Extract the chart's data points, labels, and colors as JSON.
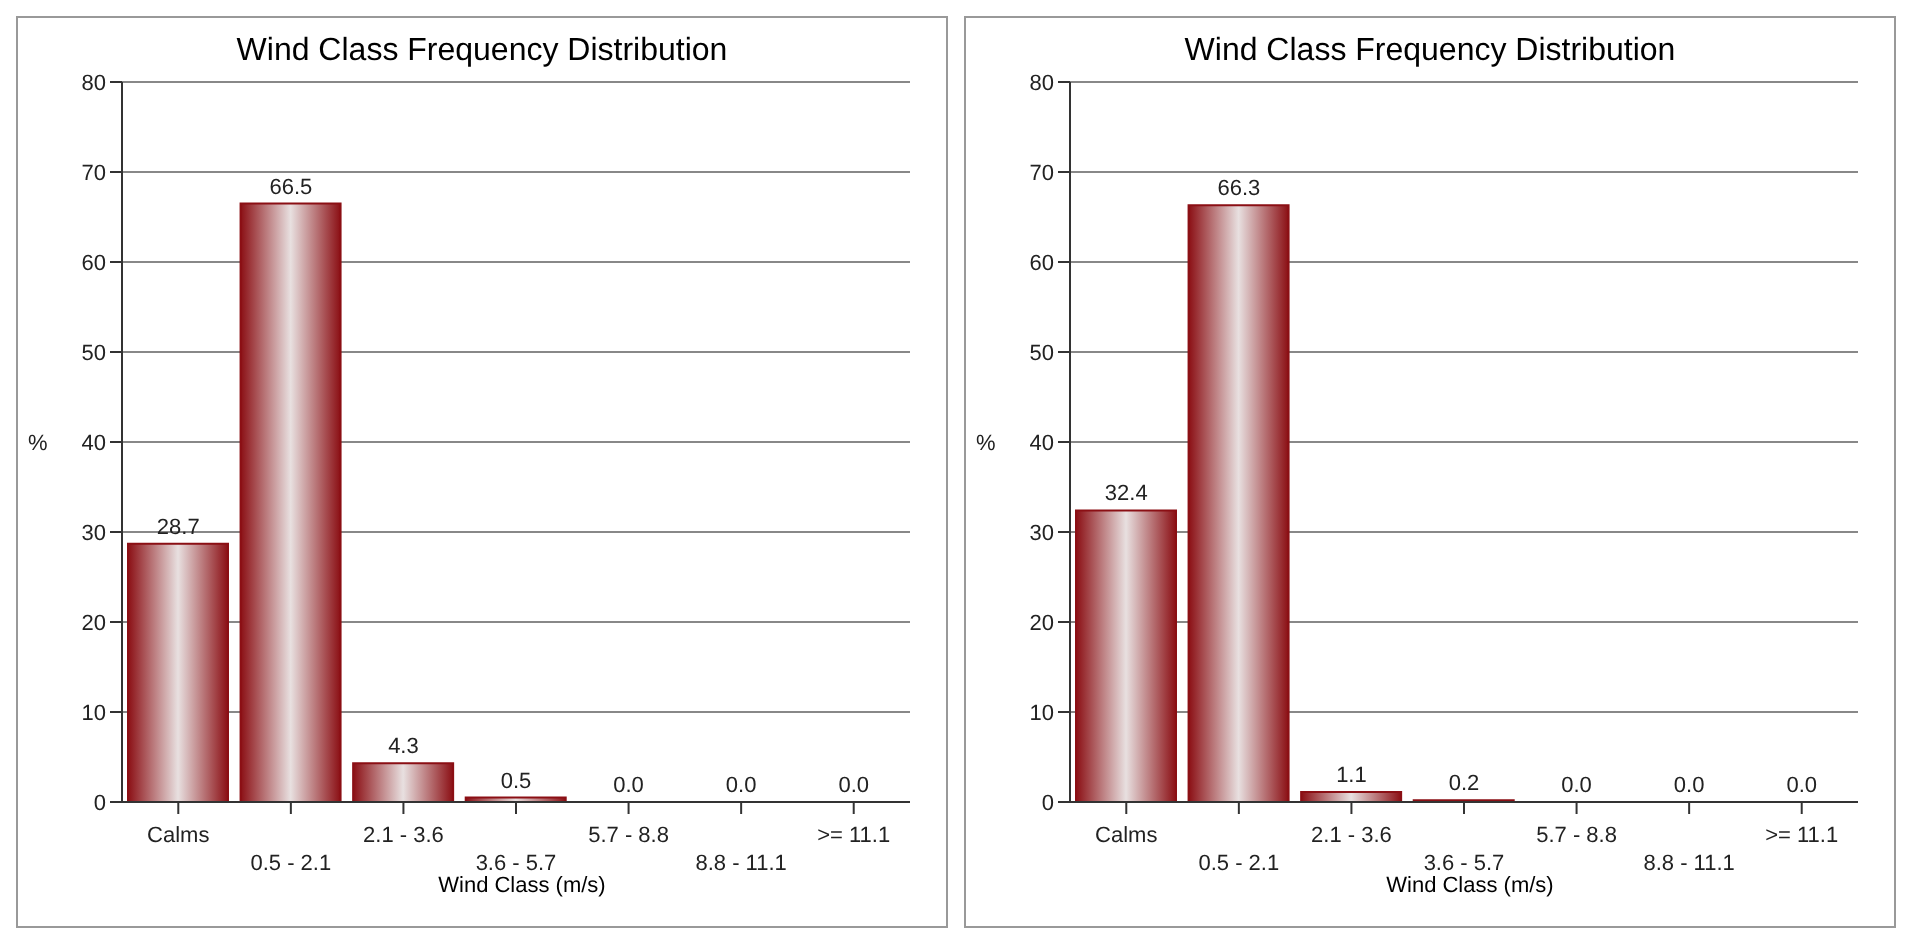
{
  "chart_data": [
    {
      "type": "bar",
      "title": "Wind Class Frequency Distribution",
      "xlabel": "Wind Class (m/s)",
      "ylabel": "%",
      "categories": [
        "Calms",
        "0.5 -  2.1",
        "2.1 -  3.6",
        "3.6 -  5.7",
        "5.7 -  8.8",
        "8.8 - 11.1",
        ">= 11.1"
      ],
      "values": [
        28.7,
        66.5,
        4.3,
        0.5,
        0.0,
        0.0,
        0.0
      ],
      "value_labels": [
        "28.7",
        "66.5",
        "4.3",
        "0.5",
        "0.0",
        "0.0",
        "0.0"
      ],
      "color": "#8b0f14",
      "ylim": [
        0,
        80
      ],
      "yticks": [
        0,
        10,
        20,
        30,
        40,
        50,
        60,
        70,
        80
      ],
      "grid": "y"
    },
    {
      "type": "bar",
      "title": "Wind Class Frequency Distribution",
      "xlabel": "Wind Class (m/s)",
      "ylabel": "%",
      "categories": [
        "Calms",
        "0.5 -  2.1",
        "2.1 -  3.6",
        "3.6 -  5.7",
        "5.7 -  8.8",
        "8.8 - 11.1",
        ">= 11.1"
      ],
      "values": [
        32.4,
        66.3,
        1.1,
        0.2,
        0.0,
        0.0,
        0.0
      ],
      "value_labels": [
        "32.4",
        "66.3",
        "1.1",
        "0.2",
        "0.0",
        "0.0",
        "0.0"
      ],
      "color": "#8b0f14",
      "ylim": [
        0,
        80
      ],
      "yticks": [
        0,
        10,
        20,
        30,
        40,
        50,
        60,
        70,
        80
      ],
      "grid": "y"
    }
  ]
}
